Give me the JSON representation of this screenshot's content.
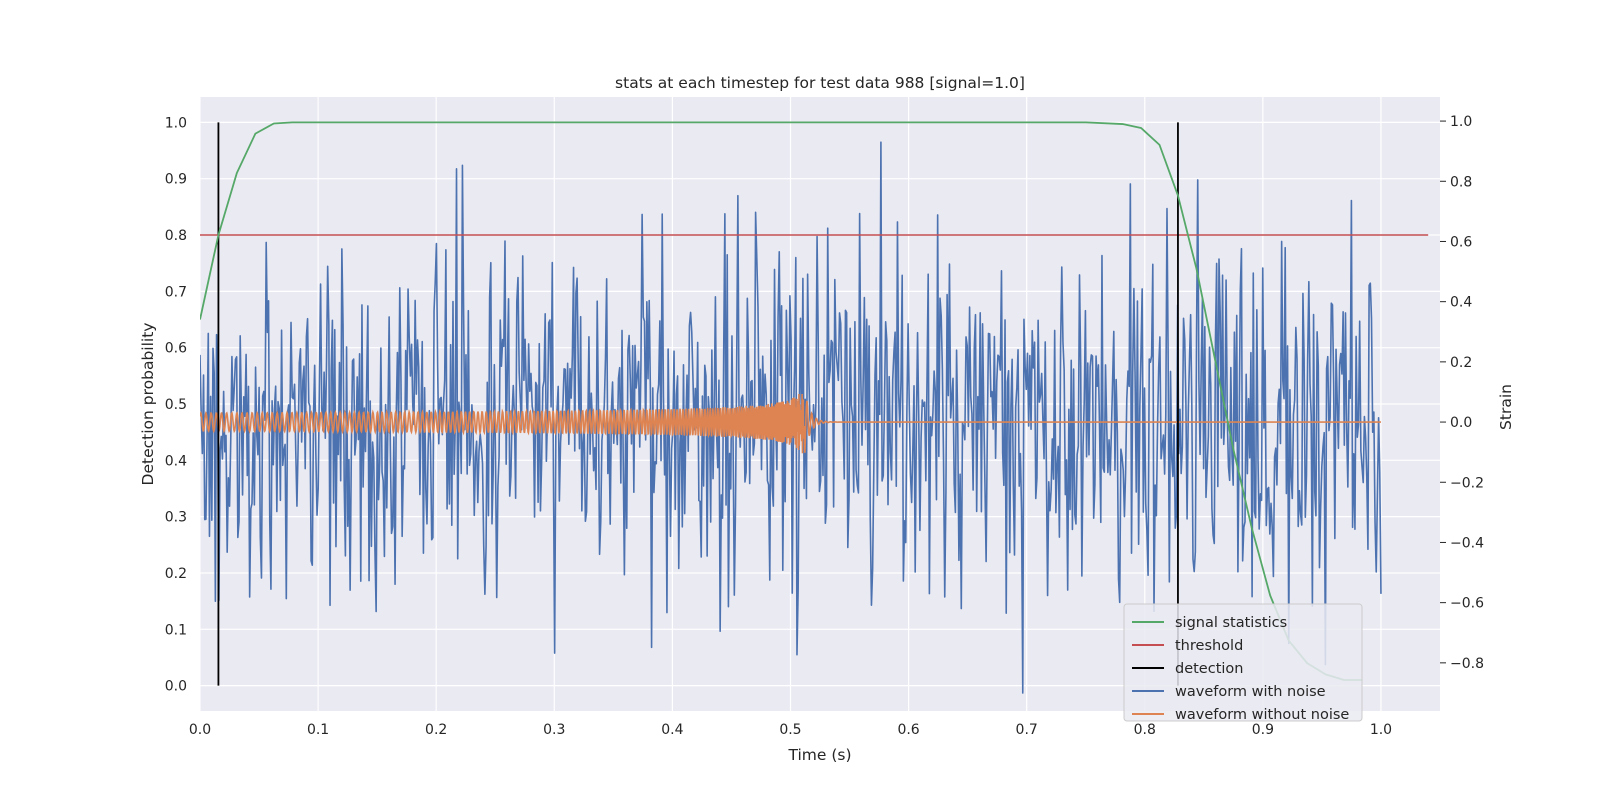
{
  "chart_data": {
    "type": "line",
    "title": "stats at each timestep for test data 988 [signal=1.0]",
    "xlabel": "Time (s)",
    "ylabel_left": "Detection probability",
    "ylabel_right": "Strain",
    "xlim": [
      0.0,
      1.05
    ],
    "ylim_left": [
      -0.045,
      1.045
    ],
    "ylim_right": [
      -0.96,
      1.08
    ],
    "x_ticks": [
      "0.0",
      "0.1",
      "0.2",
      "0.3",
      "0.4",
      "0.5",
      "0.6",
      "0.7",
      "0.8",
      "0.9",
      "1.0"
    ],
    "y_ticks_left": [
      "0.0",
      "0.1",
      "0.2",
      "0.3",
      "0.4",
      "0.5",
      "0.6",
      "0.7",
      "0.8",
      "0.9",
      "1.0"
    ],
    "y_ticks_right": [
      "−0.8",
      "−0.6",
      "−0.4",
      "−0.2",
      "0.0",
      "0.2",
      "0.4",
      "0.6",
      "0.8",
      "1.0"
    ],
    "grid": true,
    "legend_position": "lower-right",
    "series": [
      {
        "name": "signal statistics",
        "axis": "left",
        "color": "#55a868",
        "x": [
          0.0,
          0.0156,
          0.0312,
          0.0469,
          0.0625,
          0.0781,
          0.1,
          0.2,
          0.3,
          0.4,
          0.5,
          0.6,
          0.7,
          0.75,
          0.7812,
          0.7969,
          0.8125,
          0.8281,
          0.8438,
          0.8594,
          0.875,
          0.8906,
          0.9062,
          0.9219,
          0.9375,
          0.9531,
          0.9688,
          0.9844
        ],
        "y": [
          0.65,
          0.8,
          0.91,
          0.98,
          0.998,
          1.0,
          1.0,
          1.0,
          1.0,
          1.0,
          1.0,
          1.0,
          1.0,
          1.0,
          0.997,
          0.99,
          0.96,
          0.87,
          0.74,
          0.58,
          0.42,
          0.28,
          0.16,
          0.08,
          0.04,
          0.02,
          0.01,
          0.01
        ]
      },
      {
        "name": "threshold",
        "axis": "left",
        "color": "#c44e52",
        "x": [
          0.0,
          1.04
        ],
        "y": [
          0.8,
          0.8
        ]
      },
      {
        "name": "detection",
        "axis": "left",
        "color": "#000000",
        "x": [
          0.0156,
          0.8281
        ],
        "y_range": [
          0.0,
          1.0
        ]
      },
      {
        "name": "waveform with noise",
        "axis": "right",
        "color": "#4c72b0",
        "n_points": 1000,
        "x_range": [
          0.0,
          1.0
        ],
        "y_range": [
          -0.9,
          0.93
        ],
        "note": "dense random noise"
      },
      {
        "name": "waveform without noise",
        "axis": "right",
        "color": "#dd8452",
        "x_range": [
          0.0,
          1.0
        ],
        "y_range": [
          -0.17,
          0.11
        ],
        "merger_time": 0.512,
        "note": "chirp"
      }
    ]
  }
}
